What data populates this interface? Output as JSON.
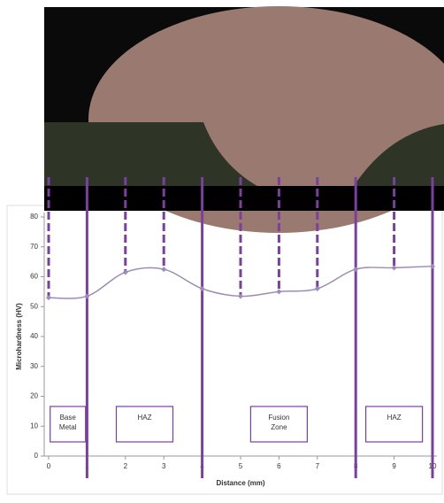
{
  "chart_data": {
    "type": "line",
    "x_label": "Distance (mm)",
    "y_label": "Microhardness (HV)",
    "x": [
      0,
      1,
      2,
      3,
      4,
      5,
      6,
      7,
      8,
      9,
      10
    ],
    "series": [
      {
        "color": "#9a8cb8",
        "values": [
          53,
          53.5,
          61.5,
          62.5,
          56,
          53.5,
          55,
          56,
          62.5,
          63,
          63.5
        ]
      }
    ],
    "xlim": [
      0,
      10
    ],
    "xticks": [
      0,
      1,
      2,
      3,
      4,
      5,
      6,
      7,
      8,
      9,
      10
    ],
    "ylim": [
      0,
      80
    ],
    "yticks": [
      0,
      10,
      20,
      30,
      40,
      50,
      60,
      70,
      80
    ],
    "boundaries": [
      1,
      4,
      8,
      10
    ],
    "boundary_color": "#7b3fa0",
    "regions": [
      {
        "label": "Base Metal",
        "from": 0,
        "to": 1
      },
      {
        "label": "HAZ",
        "from": 1,
        "to": 4
      },
      {
        "label": "Fusion Zone",
        "from": 4,
        "to": 8
      },
      {
        "label": "HAZ",
        "from": 8,
        "to": 10
      }
    ]
  }
}
